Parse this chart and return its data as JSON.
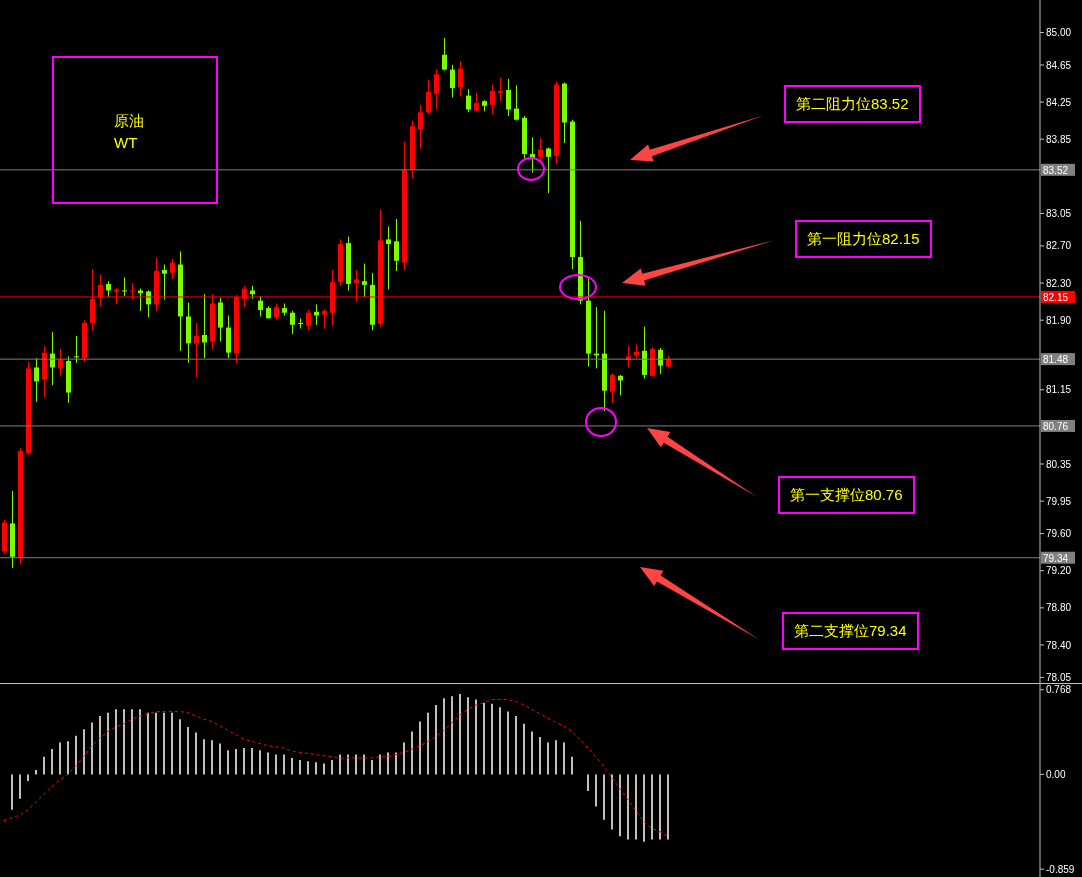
{
  "chart_data": [
    {
      "type": "candlestick",
      "categories": [
        null,
        null,
        null,
        null,
        null,
        null,
        null,
        null,
        null,
        null,
        null,
        null,
        null,
        null,
        null,
        null,
        null,
        null,
        null,
        null,
        null,
        null,
        null,
        null,
        null,
        null,
        null,
        null,
        null,
        null,
        null,
        null,
        null,
        null,
        null,
        null,
        null,
        null,
        null,
        null,
        null,
        null,
        null,
        null,
        null,
        null,
        null,
        null,
        null,
        null,
        null,
        null,
        null,
        null,
        null,
        null,
        null,
        null,
        null,
        null,
        null,
        null,
        null,
        null,
        null,
        null,
        null,
        null,
        null,
        null,
        null,
        null,
        null,
        null,
        null,
        null,
        null,
        null,
        null,
        null,
        null,
        null,
        null,
        null,
        null,
        null,
        null,
        null,
        null,
        null,
        null,
        null,
        null,
        null,
        null,
        null,
        null,
        null,
        null,
        null,
        null,
        null,
        null,
        null,
        null,
        null,
        null,
        null,
        null,
        null,
        null,
        null,
        null,
        null,
        null,
        null,
        null,
        null,
        null,
        null,
        null,
        null,
        null,
        null,
        null,
        null,
        null,
        null,
        null,
        null
      ],
      "ohlc": [
        [
          79.41,
          79.75,
          79.38,
          79.72
        ],
        [
          79.71,
          80.06,
          79.23,
          79.35
        ],
        [
          79.34,
          80.52,
          79.27,
          80.49
        ],
        [
          80.47,
          81.45,
          80.45,
          81.38
        ],
        [
          81.39,
          81.49,
          81.02,
          81.24
        ],
        [
          81.26,
          81.62,
          81.07,
          81.55
        ],
        [
          81.54,
          81.77,
          81.2,
          81.39
        ],
        [
          81.38,
          81.59,
          81.3,
          81.47
        ],
        [
          81.46,
          81.51,
          81.01,
          81.12
        ],
        [
          81.51,
          81.73,
          81.44,
          81.5
        ],
        [
          81.49,
          81.9,
          81.45,
          81.87
        ],
        [
          81.87,
          82.45,
          81.79,
          82.13
        ],
        [
          82.14,
          82.39,
          82.05,
          82.28
        ],
        [
          82.29,
          82.32,
          82.15,
          82.22
        ],
        [
          82.21,
          82.25,
          82.07,
          82.23
        ],
        [
          82.22,
          82.36,
          82.16,
          82.21
        ],
        [
          82.21,
          82.3,
          82.12,
          82.22
        ],
        [
          82.22,
          82.24,
          82.0,
          82.19
        ],
        [
          82.21,
          82.22,
          81.93,
          82.07
        ],
        [
          82.07,
          82.57,
          82.0,
          82.43
        ],
        [
          82.44,
          82.5,
          82.12,
          82.4
        ],
        [
          82.41,
          82.56,
          82.34,
          82.52
        ],
        [
          82.5,
          82.64,
          81.57,
          81.94
        ],
        [
          81.94,
          82.09,
          81.44,
          81.65
        ],
        [
          81.65,
          81.87,
          81.28,
          81.73
        ],
        [
          81.74,
          82.18,
          81.49,
          81.66
        ],
        [
          81.67,
          82.18,
          81.59,
          82.08
        ],
        [
          82.09,
          82.14,
          81.67,
          81.82
        ],
        [
          81.82,
          81.95,
          81.49,
          81.55
        ],
        [
          81.54,
          82.17,
          81.44,
          82.15
        ],
        [
          82.13,
          82.27,
          82.04,
          82.24
        ],
        [
          82.22,
          82.27,
          82.13,
          82.18
        ],
        [
          82.11,
          82.16,
          81.94,
          82.01
        ],
        [
          82.03,
          82.05,
          81.92,
          81.92
        ],
        [
          81.93,
          82.08,
          81.91,
          82.04
        ],
        [
          82.03,
          82.08,
          81.95,
          81.98
        ],
        [
          81.98,
          82.0,
          81.75,
          81.85
        ],
        [
          81.87,
          81.92,
          81.81,
          81.86
        ],
        [
          81.84,
          82.01,
          81.79,
          81.98
        ],
        [
          81.99,
          82.07,
          81.85,
          81.95
        ],
        [
          81.96,
          82.02,
          81.81,
          82.0
        ],
        [
          81.98,
          82.44,
          81.84,
          82.31
        ],
        [
          82.31,
          82.77,
          82.27,
          82.72
        ],
        [
          82.73,
          82.8,
          82.22,
          82.29
        ],
        [
          82.3,
          82.44,
          82.1,
          82.34
        ],
        [
          82.32,
          82.51,
          82.15,
          82.28
        ],
        [
          82.28,
          82.41,
          81.79,
          81.85
        ],
        [
          81.86,
          83.09,
          81.83,
          82.76
        ],
        [
          82.77,
          82.91,
          82.23,
          82.72
        ],
        [
          82.75,
          82.99,
          82.43,
          82.54
        ],
        [
          82.52,
          83.82,
          82.44,
          83.52
        ],
        [
          83.52,
          84.05,
          83.43,
          83.99
        ],
        [
          83.96,
          84.22,
          83.75,
          84.14
        ],
        [
          84.14,
          84.49,
          84.12,
          84.36
        ],
        [
          84.34,
          84.6,
          84.17,
          84.55
        ],
        [
          84.76,
          84.94,
          84.59,
          84.6
        ],
        [
          84.6,
          84.65,
          84.3,
          84.4
        ],
        [
          84.41,
          84.69,
          84.31,
          84.61
        ],
        [
          84.32,
          84.39,
          84.14,
          84.17
        ],
        [
          84.16,
          84.35,
          84.15,
          84.24
        ],
        [
          84.26,
          84.27,
          84.15,
          84.21
        ],
        [
          84.22,
          84.44,
          84.12,
          84.37
        ],
        [
          84.35,
          84.51,
          84.26,
          84.37
        ],
        [
          84.38,
          84.5,
          84.1,
          84.17
        ],
        [
          84.18,
          84.43,
          84.05,
          84.06
        ],
        [
          84.08,
          84.1,
          83.64,
          83.69
        ],
        [
          83.69,
          83.87,
          83.49,
          83.65
        ],
        [
          83.66,
          83.86,
          83.59,
          83.74
        ],
        [
          83.75,
          83.76,
          83.27,
          83.66
        ],
        [
          83.67,
          84.47,
          83.58,
          84.44
        ],
        [
          84.45,
          84.46,
          83.81,
          84.03
        ],
        [
          84.04,
          84.06,
          82.45,
          82.58
        ],
        [
          82.58,
          82.97,
          82.07,
          82.11
        ],
        [
          82.11,
          82.35,
          81.4,
          81.54
        ],
        [
          81.54,
          82.04,
          81.38,
          81.52
        ],
        [
          81.54,
          82.0,
          80.92,
          81.14
        ],
        [
          81.13,
          81.33,
          81.01,
          81.31
        ],
        [
          81.3,
          81.31,
          81.09,
          81.25
        ],
        [
          81.47,
          81.62,
          81.39,
          81.51
        ],
        [
          81.52,
          81.64,
          81.49,
          81.56
        ],
        [
          81.57,
          81.83,
          81.27,
          81.31
        ],
        [
          81.3,
          81.61,
          81.29,
          81.59
        ],
        [
          81.58,
          81.6,
          81.32,
          81.41
        ],
        [
          81.4,
          81.52,
          81.39,
          81.48
        ],
        null,
        null,
        null,
        null,
        null,
        null,
        null,
        null,
        null,
        null,
        null,
        null,
        null,
        null,
        null,
        null,
        null,
        null,
        null,
        null,
        null,
        null,
        null,
        null,
        null,
        null,
        null,
        null,
        null,
        null,
        null,
        null,
        null,
        null,
        null,
        null,
        null,
        null,
        null,
        null,
        null,
        null,
        null,
        null,
        null,
        null
      ],
      "colors": [
        "#ff0000",
        "#7cfc00",
        "#ff0000",
        "#ff0000",
        "#7cfc00",
        "#ff0000",
        "#7cfc00",
        "#ff0000",
        "#7cfc00",
        "#7cfc00",
        "#ff0000",
        "#ff0000",
        "#ff0000",
        "#7cfc00",
        "#ff0000",
        "#7cfc00",
        "#ff0000",
        "#7cfc00",
        "#7cfc00",
        "#ff0000",
        "#7cfc00",
        "#ff0000",
        "#7cfc00",
        "#7cfc00",
        "#ff0000",
        "#7cfc00",
        "#ff0000",
        "#7cfc00",
        "#7cfc00",
        "#ff0000",
        "#ff0000",
        "#7cfc00",
        "#7cfc00",
        "#7cfc00",
        "#ff0000",
        "#7cfc00",
        "#7cfc00",
        "#7cfc00",
        "#ff0000",
        "#7cfc00",
        "#ff0000",
        "#ff0000",
        "#ff0000",
        "#7cfc00",
        "#ff0000",
        "#7cfc00",
        "#7cfc00",
        "#ff0000",
        "#7cfc00",
        "#7cfc00",
        "#ff0000",
        "#ff0000",
        "#ff0000",
        "#ff0000",
        "#ff0000",
        "#7cfc00",
        "#7cfc00",
        "#ff0000",
        "#7cfc00",
        "#ff0000",
        "#7cfc00",
        "#ff0000",
        "#ff0000",
        "#7cfc00",
        "#7cfc00",
        "#7cfc00",
        "#7cfc00",
        "#ff0000",
        "#7cfc00",
        "#ff0000",
        "#7cfc00",
        "#7cfc00",
        "#7cfc00",
        "#7cfc00",
        "#7cfc00",
        "#7cfc00",
        "#ff0000",
        "#7cfc00",
        "#ff0000",
        "#ff0000",
        "#7cfc00",
        "#ff0000",
        "#7cfc00",
        "#ff0000",
        null,
        null,
        null,
        null,
        null,
        null,
        null,
        null,
        null,
        null,
        null,
        null,
        null,
        null,
        null,
        null,
        null,
        null,
        null,
        null,
        null,
        null,
        null,
        null,
        null,
        null,
        null,
        null,
        null,
        null,
        null,
        null,
        null,
        null,
        null,
        null,
        null,
        null,
        null,
        null,
        null,
        null,
        null,
        null,
        null,
        null
      ],
      "ylim": [
        77.99,
        85.35
      ],
      "yticks": [
        {
          "value": 85,
          "label": "85.00"
        },
        {
          "value": 84.65,
          "label": "84.65"
        },
        {
          "value": 84.25,
          "label": "84.25"
        },
        {
          "value": 83.85,
          "label": "83.85"
        },
        {
          "value": 83.05,
          "label": "83.05"
        },
        {
          "value": 82.7,
          "label": "82.70"
        },
        {
          "value": 82.3,
          "label": "82.30"
        },
        {
          "value": 81.9,
          "label": "81.90"
        },
        {
          "value": 81.15,
          "label": "81.15"
        },
        {
          "value": 80.35,
          "label": "80.35"
        },
        {
          "value": 79.95,
          "label": "79.95"
        },
        {
          "value": 79.6,
          "label": "79.60"
        },
        {
          "value": 79.2,
          "label": "79.20"
        },
        {
          "value": 78.8,
          "label": "78.80"
        },
        {
          "value": 78.4,
          "label": "78.40"
        },
        {
          "value": 78.05,
          "label": "78.05"
        }
      ],
      "ref_lines": [
        {
          "axis": "y",
          "value": 83.52,
          "label": "83.52",
          "color": "#808080"
        },
        {
          "axis": "y",
          "value": 82.15,
          "label": "82.15",
          "color": "#ff0000"
        },
        {
          "axis": "y",
          "value": 81.48,
          "label": "81.48",
          "color": "#808080"
        },
        {
          "axis": "y",
          "value": 80.76,
          "label": "80.76",
          "color": "#808080"
        },
        {
          "axis": "y",
          "value": 79.34,
          "label": "79.34",
          "color": "#808080"
        }
      ],
      "annotations": [
        "原油",
        "WT",
        "第二阻力位83.52",
        "第一阻力位82.15",
        "第一支撑位80.76",
        "第二支撑位79.34"
      ],
      "tick_labels": "y",
      "grid": false,
      "legend": false
    },
    {
      "type": "bar",
      "categories": [
        null,
        null,
        null,
        null,
        null,
        null,
        null,
        null,
        null,
        null,
        null,
        null,
        null,
        null,
        null,
        null,
        null,
        null,
        null,
        null,
        null,
        null,
        null,
        null,
        null,
        null,
        null,
        null,
        null,
        null,
        null,
        null,
        null,
        null,
        null,
        null,
        null,
        null,
        null,
        null,
        null,
        null,
        null,
        null,
        null,
        null,
        null,
        null,
        null,
        null,
        null,
        null,
        null,
        null,
        null,
        null,
        null,
        null,
        null,
        null,
        null,
        null,
        null,
        null,
        null,
        null,
        null,
        null,
        null,
        null,
        null,
        null,
        null,
        null,
        null,
        null,
        null,
        null,
        null,
        null,
        null,
        null,
        null,
        null,
        null,
        null,
        null,
        null,
        null,
        null,
        null,
        null,
        null,
        null,
        null,
        null,
        null,
        null,
        null,
        null,
        null,
        null,
        null,
        null,
        null,
        null,
        null,
        null,
        null,
        null,
        null,
        null,
        null,
        null,
        null,
        null,
        null,
        null,
        null,
        null,
        null,
        null,
        null,
        null,
        null,
        null,
        null,
        null,
        null,
        null
      ],
      "series": [
        {
          "type": "bar",
          "color": "#c0c0c0",
          "values": [
            null,
            -0.32,
            -0.22,
            -0.06,
            0.04,
            0.16,
            0.23,
            0.29,
            0.3,
            0.35,
            0.41,
            0.47,
            0.53,
            0.56,
            0.59,
            0.59,
            0.59,
            0.59,
            0.56,
            0.56,
            0.56,
            0.56,
            0.5,
            0.43,
            0.38,
            0.32,
            0.31,
            0.28,
            0.22,
            0.23,
            0.24,
            0.24,
            0.22,
            0.2,
            0.18,
            0.18,
            0.15,
            0.13,
            0.12,
            0.11,
            0.1,
            0.13,
            0.18,
            0.18,
            0.18,
            0.18,
            0.13,
            0.18,
            0.2,
            0.2,
            0.29,
            0.39,
            0.48,
            0.56,
            0.63,
            0.69,
            0.71,
            0.73,
            0.7,
            0.68,
            0.65,
            0.64,
            0.61,
            0.57,
            0.53,
            0.46,
            0.39,
            0.34,
            0.29,
            0.31,
            0.29,
            0.16,
            0.0,
            -0.15,
            -0.29,
            -0.41,
            -0.5,
            -0.56,
            -0.59,
            -0.59,
            -0.61,
            -0.59,
            -0.59,
            -0.59,
            null,
            null,
            null,
            null,
            null,
            null,
            null,
            null,
            null,
            null,
            null,
            null,
            null,
            null,
            null,
            null,
            null,
            null,
            null,
            null,
            null,
            null,
            null,
            null,
            null,
            null,
            null,
            null,
            null,
            null,
            null,
            null,
            null,
            null,
            null,
            null,
            null,
            null,
            null,
            null,
            null,
            null,
            null,
            null,
            null,
            null
          ]
        },
        {
          "type": "line",
          "color": "#ff0000",
          "line_style": "dashed",
          "marker": "none",
          "values": [
            -0.42,
            -0.39,
            -0.37,
            -0.32,
            -0.25,
            -0.18,
            -0.11,
            -0.05,
            0.0,
            0.08,
            0.17,
            0.26,
            0.33,
            0.39,
            0.43,
            0.46,
            0.5,
            0.53,
            0.55,
            0.57,
            0.57,
            0.57,
            0.57,
            0.56,
            0.53,
            0.5,
            0.48,
            0.44,
            0.4,
            0.36,
            0.32,
            0.3,
            0.28,
            0.26,
            0.25,
            0.24,
            0.21,
            0.2,
            0.19,
            0.18,
            0.17,
            0.16,
            0.15,
            0.15,
            0.15,
            0.15,
            0.15,
            0.16,
            0.16,
            0.18,
            0.2,
            0.23,
            0.26,
            0.3,
            0.34,
            0.4,
            0.47,
            0.54,
            0.59,
            0.63,
            0.65,
            0.68,
            0.68,
            0.68,
            0.66,
            0.63,
            0.59,
            0.55,
            0.51,
            0.47,
            0.44,
            0.39,
            0.32,
            0.24,
            0.16,
            0.07,
            -0.03,
            -0.13,
            -0.23,
            -0.33,
            -0.43,
            -0.49,
            -0.52,
            -0.56,
            null,
            null,
            null,
            null,
            null,
            null,
            null,
            null,
            null,
            null,
            null,
            null,
            null,
            null,
            null,
            null,
            null,
            null,
            null,
            null,
            null,
            null,
            null,
            null,
            null,
            null,
            null,
            null,
            null,
            null,
            null,
            null,
            null,
            null,
            null,
            null,
            null,
            null,
            null,
            null,
            null,
            null,
            null,
            null,
            null,
            null
          ]
        }
      ],
      "ylim": [
        -0.93,
        0.82
      ],
      "yticks": [
        0.768,
        {
          "value": 0,
          "label": "0.00"
        },
        -0.859
      ],
      "tick_labels": "y",
      "grid": false,
      "legend": false
    }
  ]
}
